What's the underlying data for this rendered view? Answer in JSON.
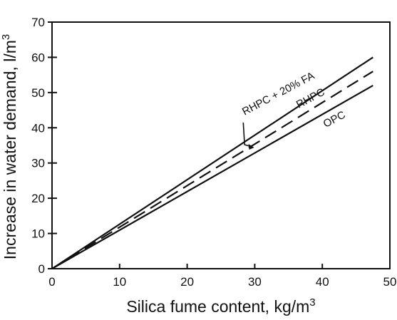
{
  "chart_data": {
    "type": "line",
    "title": "",
    "xlabel": "Silica fume content, kg/m",
    "xlabel_sup": "3",
    "ylabel": "Increase in water demand, l/m",
    "ylabel_sup": "3",
    "xlim": [
      0,
      50
    ],
    "ylim": [
      0,
      70
    ],
    "xticks": [
      0,
      10,
      20,
      30,
      40,
      50
    ],
    "yticks": [
      0,
      10,
      20,
      30,
      40,
      50,
      60,
      70
    ],
    "grid": false,
    "legend": "inline labels",
    "series": [
      {
        "name": "RHPC + 20% FA",
        "style": "solid",
        "color": "#111111",
        "x": [
          0,
          47.5
        ],
        "y": [
          0,
          60
        ]
      },
      {
        "name": "RHPC",
        "style": "dashed",
        "color": "#111111",
        "x": [
          0,
          47.5
        ],
        "y": [
          0,
          56
        ]
      },
      {
        "name": "OPC",
        "style": "solid",
        "color": "#111111",
        "x": [
          0,
          47.5
        ],
        "y": [
          0,
          52
        ]
      }
    ]
  }
}
